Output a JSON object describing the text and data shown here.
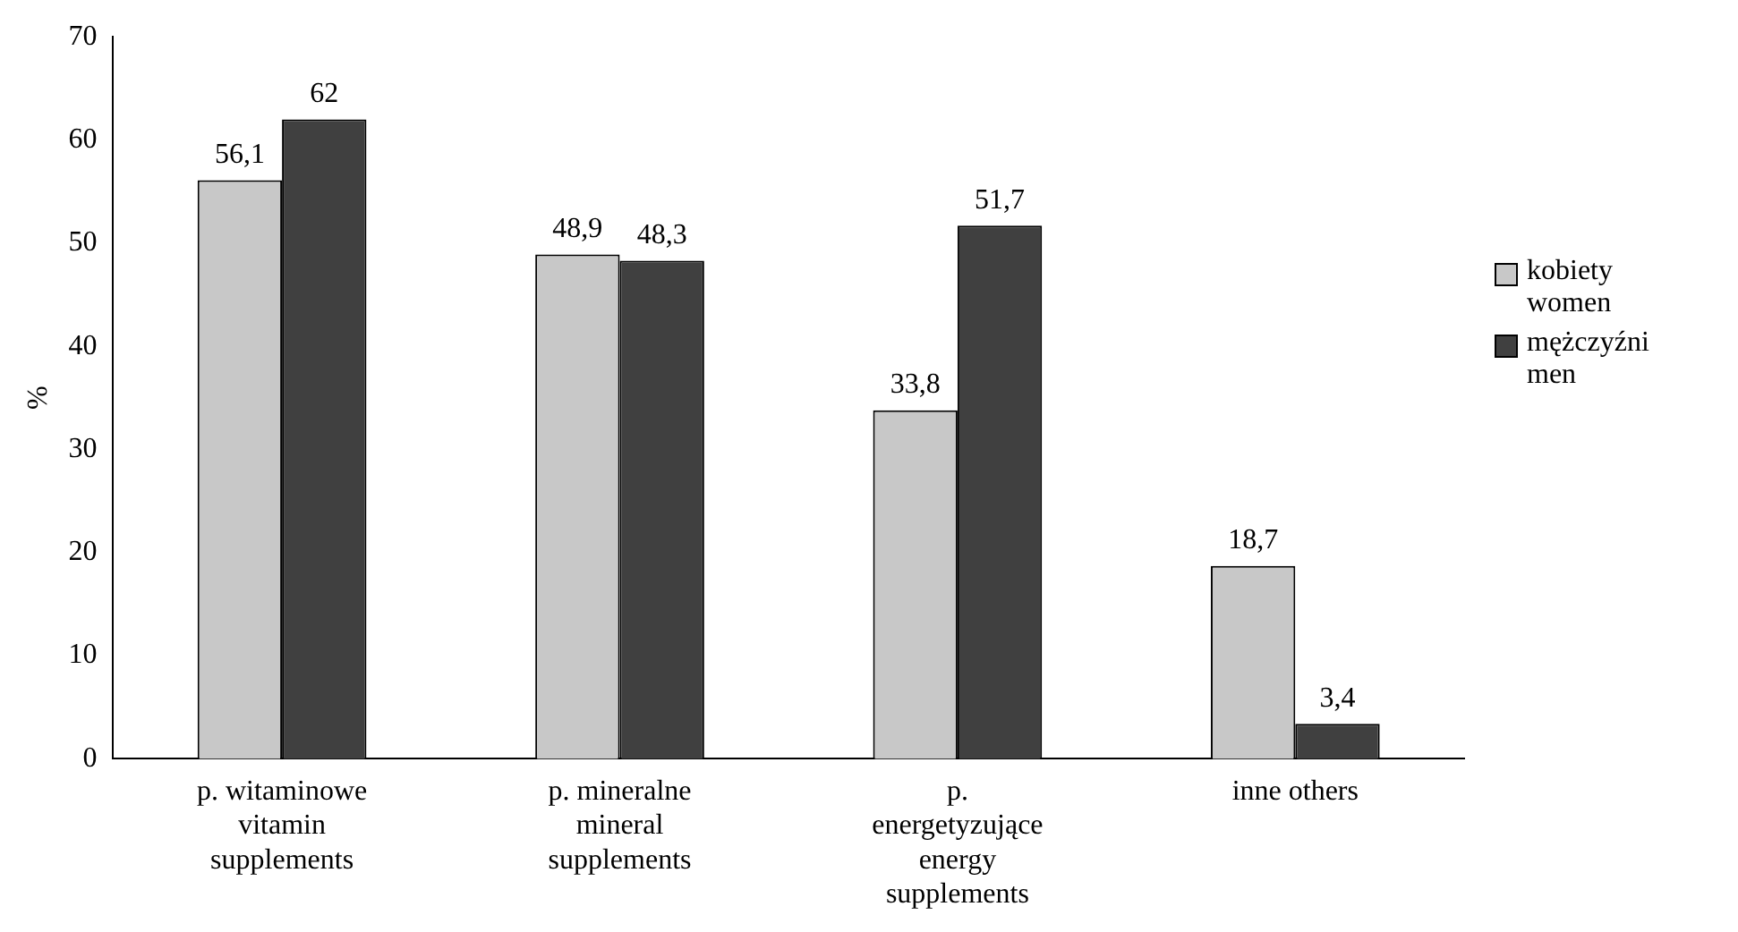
{
  "chart_data": {
    "type": "bar",
    "ylabel": "%",
    "categories": [
      "p. witaminowe vitamin supplements",
      "p. mineralne mineral supplements",
      "p. energetyzujące energy supplements",
      "inne others"
    ],
    "series": [
      {
        "name": "kobiety women",
        "color": "#c8c8c8",
        "values": [
          56.1,
          48.9,
          33.8,
          18.7
        ],
        "value_labels": [
          "56,1",
          "48,9",
          "33,8",
          "18,7"
        ]
      },
      {
        "name": "mężczyźni men",
        "color": "#404040",
        "values": [
          62,
          48.3,
          51.7,
          3.4
        ],
        "value_labels": [
          "62",
          "48,3",
          "51,7",
          "3,4"
        ]
      }
    ],
    "ylim": [
      0,
      70
    ],
    "yticks": [
      0,
      10,
      20,
      30,
      40,
      50,
      60,
      70
    ],
    "grid": false,
    "legend": "right"
  }
}
